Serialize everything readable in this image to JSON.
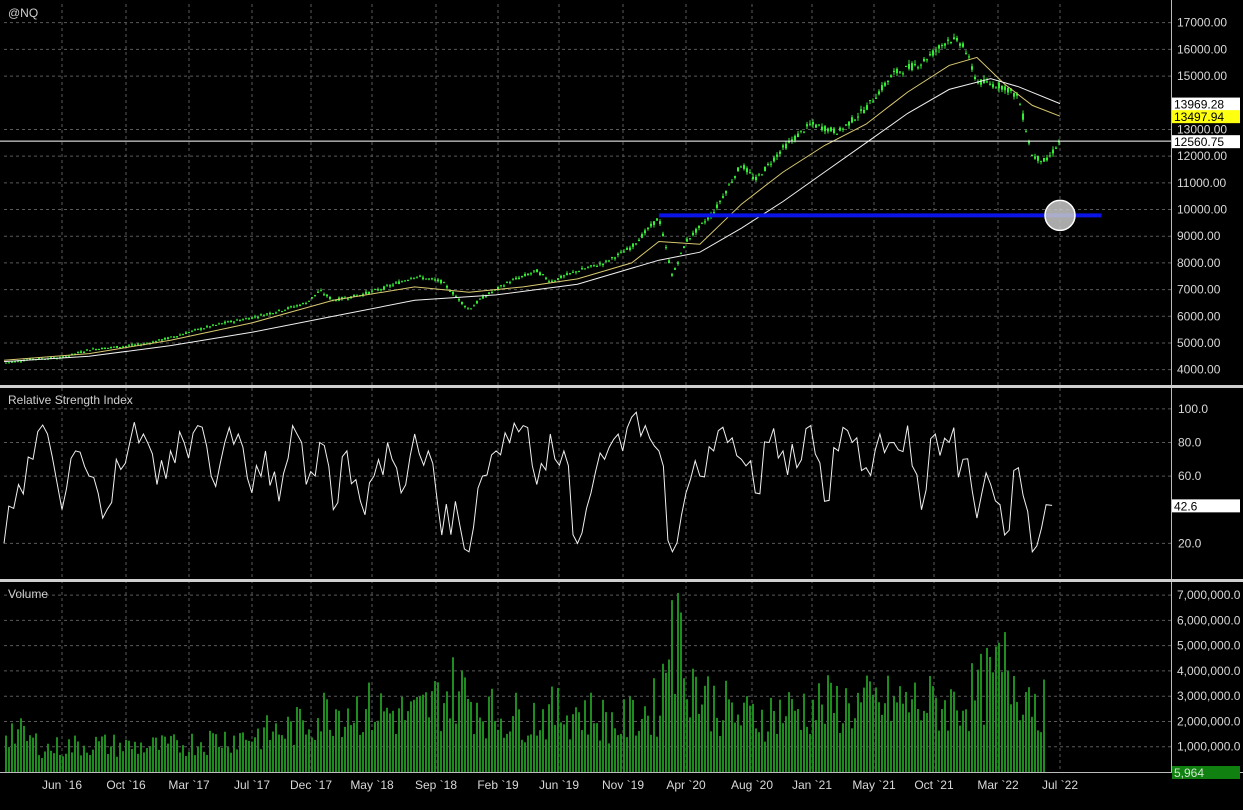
{
  "symbol": "@NQ",
  "colors": {
    "background": "#000000",
    "grid": "#5a5a5a",
    "axis_text": "#d8d8d8",
    "candles": "#33ee33",
    "ma_fast": "#d8c870",
    "ma_slow": "#f0f0f0",
    "support_line": "#0a14e6",
    "volume": "#1f8c1f",
    "rsi_line": "#f0f0f0",
    "marker_circle": "#c8c8c8",
    "separator": "#cfcfcf",
    "label_white": "#ffffff",
    "label_yellow": "#ffff10",
    "label_green": "#108010"
  },
  "x_axis": {
    "labels": [
      "Jun `16",
      "Oct `16",
      "Mar `17",
      "Jul `17",
      "Dec `17",
      "May `18",
      "Sep `18",
      "Feb `19",
      "Jun `19",
      "Nov `19",
      "Apr `20",
      "Aug `20",
      "Jan `21",
      "May `21",
      "Oct `21",
      "Mar `22",
      "Jul `22"
    ]
  },
  "chart_data": [
    {
      "type": "line",
      "panel": "price",
      "title": "@NQ",
      "ylim": [
        3500,
        17700
      ],
      "y_ticks": [
        "4000.00",
        "5000.00",
        "6000.00",
        "7000.00",
        "8000.00",
        "9000.00",
        "10000.00",
        "11000.00",
        "12000.00",
        "13000.00",
        "15000.00",
        "16000.00",
        "17000.00"
      ],
      "price_labels": [
        {
          "text": "13969.28",
          "value": 13969.28,
          "style": "white"
        },
        {
          "text": "13497.94",
          "value": 13497.94,
          "style": "yellow"
        },
        {
          "text": "12560.75",
          "value": 12560.75,
          "style": "white-current"
        }
      ],
      "horizontal_lines": [
        {
          "value": 12560.75
        },
        {
          "value": 9780,
          "from_date": "2020-02",
          "to_date": "2022-10"
        }
      ],
      "marker_circle": {
        "date": "2022-07",
        "value": 9780
      },
      "series": [
        {
          "role": "price",
          "x": [
            "2016-02",
            "2016-04",
            "2016-06",
            "2016-08",
            "2016-10",
            "2016-12",
            "2017-02",
            "2017-04",
            "2017-06",
            "2017-08",
            "2017-10",
            "2017-12",
            "2018-01",
            "2018-02",
            "2018-04",
            "2018-06",
            "2018-08",
            "2018-10",
            "2018-12",
            "2019-01",
            "2019-03",
            "2019-05",
            "2019-06",
            "2019-08",
            "2019-10",
            "2019-12",
            "2020-02",
            "2020-03",
            "2020-04",
            "2020-06",
            "2020-08",
            "2020-09",
            "2020-11",
            "2021-01",
            "2021-03",
            "2021-05",
            "2021-07",
            "2021-09",
            "2021-11",
            "2021-12",
            "2022-01",
            "2022-03",
            "2022-04",
            "2022-05",
            "2022-06",
            "2022-07"
          ],
          "y": [
            4250,
            4400,
            4450,
            4750,
            4850,
            4950,
            5200,
            5500,
            5750,
            5950,
            6200,
            6500,
            6950,
            6600,
            6800,
            7100,
            7500,
            7300,
            6250,
            6700,
            7300,
            7700,
            7300,
            7700,
            8000,
            8600,
            9700,
            7500,
            8800,
            9900,
            11700,
            11100,
            12300,
            13200,
            12900,
            13800,
            15100,
            15500,
            16400,
            16200,
            14800,
            14600,
            14200,
            12000,
            11800,
            12560
          ]
        },
        {
          "role": "ma_fast",
          "x": [
            "2016-02",
            "2016-08",
            "2017-02",
            "2017-08",
            "2018-02",
            "2018-08",
            "2018-12",
            "2019-04",
            "2019-08",
            "2019-12",
            "2020-02",
            "2020-05",
            "2020-08",
            "2020-11",
            "2021-02",
            "2021-05",
            "2021-08",
            "2021-11",
            "2022-01",
            "2022-03",
            "2022-05",
            "2022-07"
          ],
          "y": [
            4350,
            4600,
            5100,
            5750,
            6600,
            7100,
            6900,
            7100,
            7400,
            8000,
            8800,
            8700,
            10200,
            11400,
            12400,
            13200,
            14400,
            15400,
            15700,
            14700,
            13900,
            13498
          ]
        },
        {
          "role": "ma_slow",
          "x": [
            "2016-02",
            "2016-08",
            "2017-02",
            "2017-08",
            "2018-02",
            "2018-08",
            "2019-02",
            "2019-08",
            "2020-02",
            "2020-05",
            "2020-08",
            "2020-11",
            "2021-02",
            "2021-05",
            "2021-08",
            "2021-11",
            "2022-02",
            "2022-04",
            "2022-07"
          ],
          "y": [
            4300,
            4500,
            4900,
            5400,
            6000,
            6600,
            6800,
            7200,
            8100,
            8400,
            9300,
            10300,
            11400,
            12500,
            13600,
            14500,
            14900,
            14600,
            13969
          ]
        }
      ]
    },
    {
      "type": "line",
      "panel": "rsi",
      "title": "Relative Strength Index",
      "ylim": [
        0,
        110
      ],
      "y_ticks": [
        "20.0",
        "60.0",
        "80.0",
        "100.0"
      ],
      "last_label": "42.6",
      "series": [
        {
          "name": "Relative Strength Index",
          "x": [
            "2016-02",
            "2016-03",
            "2016-04",
            "2016-05",
            "2016-06",
            "2016-07",
            "2016-08",
            "2016-09",
            "2016-10",
            "2016-11",
            "2016-12",
            "2017-01",
            "2017-02",
            "2017-03",
            "2017-04",
            "2017-05",
            "2017-06",
            "2017-07",
            "2017-08",
            "2017-09",
            "2017-10",
            "2017-11",
            "2017-12",
            "2018-01",
            "2018-02",
            "2018-03",
            "2018-04",
            "2018-05",
            "2018-06",
            "2018-07",
            "2018-08",
            "2018-09",
            "2018-10",
            "2018-11",
            "2018-12",
            "2019-01",
            "2019-02",
            "2019-03",
            "2019-04",
            "2019-05",
            "2019-06",
            "2019-07",
            "2019-08",
            "2019-09",
            "2019-10",
            "2019-11",
            "2019-12",
            "2020-01",
            "2020-02",
            "2020-03",
            "2020-04",
            "2020-05",
            "2020-06",
            "2020-07",
            "2020-08",
            "2020-09",
            "2020-10",
            "2020-11",
            "2020-12",
            "2021-01",
            "2021-02",
            "2021-03",
            "2021-04",
            "2021-05",
            "2021-06",
            "2021-07",
            "2021-08",
            "2021-09",
            "2021-10",
            "2021-11",
            "2021-12",
            "2022-01",
            "2022-02",
            "2022-03",
            "2022-04",
            "2022-05",
            "2022-06"
          ],
          "y": [
            20,
            55,
            70,
            85,
            40,
            75,
            60,
            35,
            70,
            80,
            85,
            55,
            75,
            80,
            90,
            60,
            80,
            85,
            50,
            75,
            45,
            90,
            55,
            80,
            40,
            75,
            45,
            60,
            80,
            50,
            85,
            75,
            25,
            45,
            15,
            60,
            75,
            80,
            90,
            55,
            85,
            75,
            20,
            50,
            70,
            85,
            95,
            90,
            75,
            15,
            50,
            60,
            75,
            80,
            70,
            50,
            80,
            75,
            65,
            90,
            45,
            75,
            80,
            65,
            85,
            80,
            90,
            40,
            85,
            80,
            70,
            35,
            55,
            25,
            65,
            15,
            43
          ]
        }
      ]
    },
    {
      "type": "bar",
      "panel": "volume",
      "title": "Volume",
      "ylim": [
        0,
        7400000
      ],
      "y_ticks": [
        "1,000,000.0",
        "2,000,000.0",
        "3,000,000.0",
        "4,000,000.0",
        "5,000,000.0",
        "6,000,000.0",
        "7,000,000.0"
      ],
      "last_label": "5,964",
      "x": [
        "2016-02",
        "2016-05",
        "2016-08",
        "2016-11",
        "2017-02",
        "2017-05",
        "2017-08",
        "2017-11",
        "2018-02",
        "2018-05",
        "2018-08",
        "2018-11",
        "2019-02",
        "2019-05",
        "2019-08",
        "2019-11",
        "2020-02",
        "2020-03",
        "2020-05",
        "2020-08",
        "2020-11",
        "2021-02",
        "2021-05",
        "2021-08",
        "2021-11",
        "2022-01",
        "2022-03",
        "2022-05",
        "2022-06"
      ],
      "values": [
        2100000,
        1100000,
        1300000,
        1200000,
        1200000,
        1500000,
        1700000,
        2000000,
        3000000,
        2900000,
        2600000,
        3900000,
        2600000,
        2600000,
        2900000,
        2200000,
        3100000,
        6800000,
        3600000,
        2500000,
        2800000,
        3100000,
        3100000,
        3200000,
        3100000,
        3600000,
        4800000,
        3700000,
        3000000
      ]
    }
  ]
}
